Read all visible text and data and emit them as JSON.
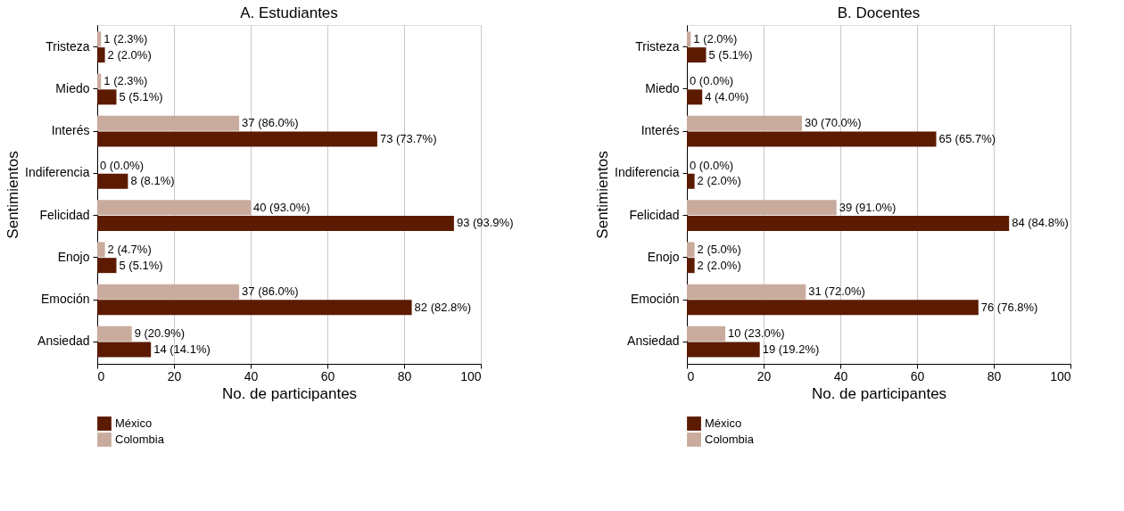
{
  "chart_data": [
    {
      "type": "bar",
      "orientation": "horizontal",
      "title": "A. Estudiantes",
      "xlabel": "No. de participantes",
      "ylabel": "Sentimientos",
      "categories": [
        "Tristeza",
        "Miedo",
        "Interés",
        "Indiferencia",
        "Felicidad",
        "Enojo",
        "Emoción",
        "Ansiedad"
      ],
      "xlim": [
        0,
        100
      ],
      "xticks": [
        0,
        20,
        40,
        60,
        80,
        100
      ],
      "grid": "x",
      "legend": "bottom",
      "series": [
        {
          "name": "México",
          "color": "#5c1a00",
          "values": [
            2,
            5,
            73,
            8,
            93,
            5,
            82,
            14
          ],
          "value_labels": [
            "2 (2.0%)",
            "5 (5.1%)",
            "73 (73.7%)",
            "8 (8.1%)",
            "93 (93.9%)",
            "5 (5.1%)",
            "82 (82.8%)",
            "14 (14.1%)"
          ]
        },
        {
          "name": "Colombia",
          "color": "#c9ab9e",
          "values": [
            1,
            1,
            37,
            0,
            40,
            2,
            37,
            9
          ],
          "value_labels": [
            "1 (2.3%)",
            "1 (2.3%)",
            "37 (86.0%)",
            "0 (0.0%)",
            "40 (93.0%)",
            "2 (4.7%)",
            "37 (86.0%)",
            "9 (20.9%)"
          ]
        }
      ]
    },
    {
      "type": "bar",
      "orientation": "horizontal",
      "title": "B. Docentes",
      "xlabel": "No. de participantes",
      "ylabel": "Sentimientos",
      "categories": [
        "Tristeza",
        "Miedo",
        "Interés",
        "Indiferencia",
        "Felicidad",
        "Enojo",
        "Emoción",
        "Ansiedad"
      ],
      "xlim": [
        0,
        100
      ],
      "xticks": [
        0,
        20,
        40,
        60,
        80,
        100
      ],
      "grid": "x",
      "legend": "bottom",
      "series": [
        {
          "name": "México",
          "color": "#5c1a00",
          "values": [
            5,
            4,
            65,
            2,
            84,
            2,
            76,
            19
          ],
          "value_labels": [
            "5 (5.1%)",
            "4 (4.0%)",
            "65 (65.7%)",
            "2 (2.0%)",
            "84 (84.8%)",
            "2 (2.0%)",
            "76 (76.8%)",
            "19 (19.2%)"
          ]
        },
        {
          "name": "Colombia",
          "color": "#c9ab9e",
          "values": [
            1,
            0,
            30,
            0,
            39,
            2,
            31,
            10
          ],
          "value_labels": [
            "1 (2.0%)",
            "0 (0.0%)",
            "30 (70.0%)",
            "0 (0.0%)",
            "39 (91.0%)",
            "2 (5.0%)",
            "31 (72.0%)",
            "10 (23.0%)"
          ]
        }
      ]
    }
  ]
}
